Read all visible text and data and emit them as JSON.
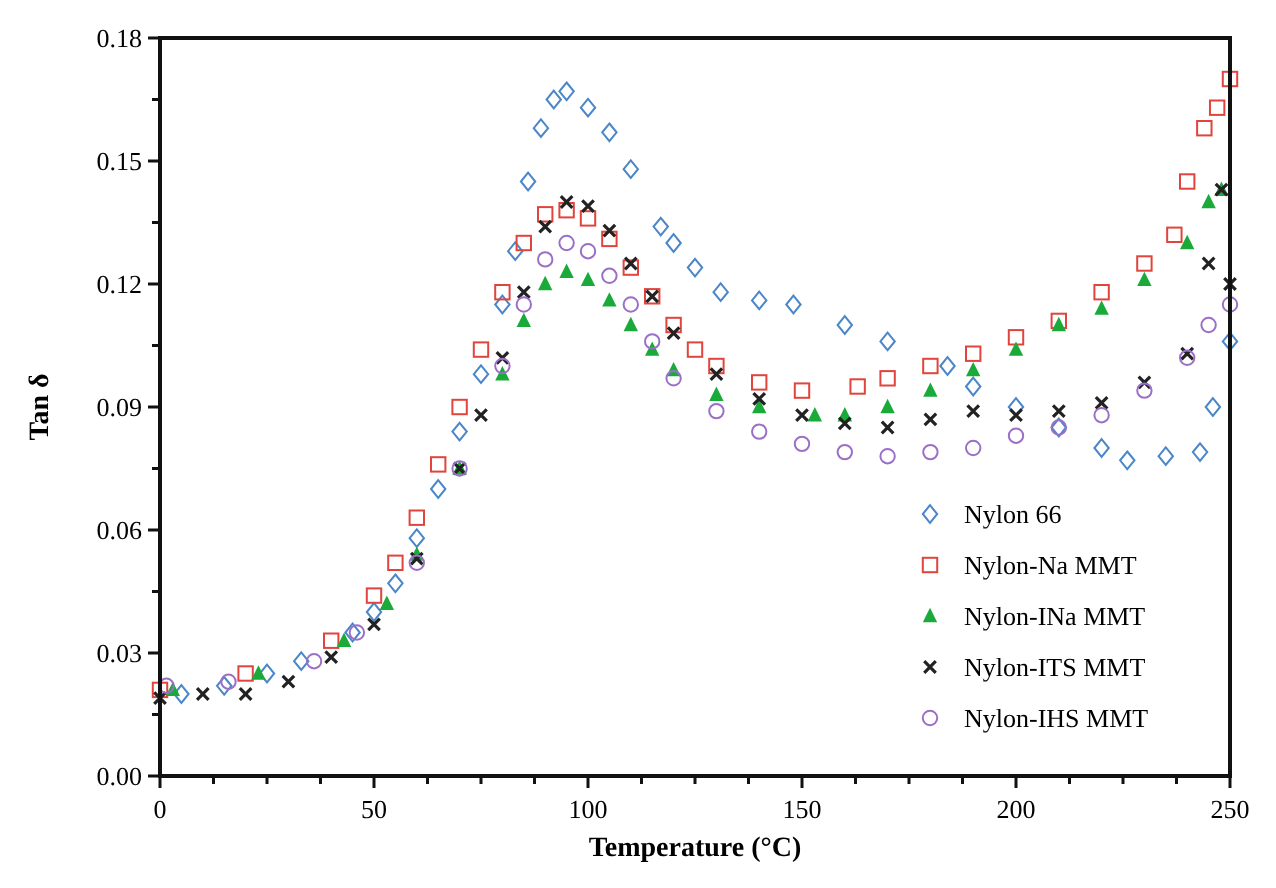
{
  "chart_data": {
    "type": "scatter",
    "xlabel": "Temperature (°C)",
    "ylabel": "Tan δ",
    "xlim": [
      0,
      250
    ],
    "ylim": [
      0,
      0.18
    ],
    "xticks": [
      0,
      {
        "value": 12.5,
        "label": null
      },
      50,
      {
        "value": 25,
        "label": null
      },
      {
        "value": 37.5,
        "label": null
      },
      {
        "value": 62.5,
        "label": null
      },
      {
        "value": 75,
        "label": null
      },
      {
        "value": 87.5,
        "label": null
      },
      100,
      {
        "value": 112.5,
        "label": null
      },
      {
        "value": 125,
        "label": null
      },
      {
        "value": 137.5,
        "label": null
      },
      150,
      {
        "value": 162.5,
        "label": null
      },
      {
        "value": 175,
        "label": null
      },
      {
        "value": 187.5,
        "label": null
      },
      200,
      {
        "value": 212.5,
        "label": null
      },
      {
        "value": 225,
        "label": null
      },
      {
        "value": 237.5,
        "label": null
      },
      250
    ],
    "yticks": [
      {
        "value": 0,
        "label": "0.00"
      },
      {
        "value": 0.015,
        "label": null
      },
      {
        "value": 0.03,
        "label": "0.03"
      },
      {
        "value": 0.045,
        "label": null
      },
      {
        "value": 0.06,
        "label": "0.06"
      },
      {
        "value": 0.075,
        "label": null
      },
      {
        "value": 0.09,
        "label": "0.09"
      },
      {
        "value": 0.105,
        "label": null
      },
      {
        "value": 0.12,
        "label": "0.12"
      },
      {
        "value": 0.135,
        "label": null
      },
      {
        "value": 0.15,
        "label": "0.15"
      },
      {
        "value": 0.165,
        "label": null
      },
      {
        "value": 0.18,
        "label": "0.18"
      }
    ],
    "grid": false,
    "legend": "bottom right",
    "series": [
      {
        "name": "Nylon 66",
        "color": "#4a86c8",
        "marker": "diamond",
        "x": [
          5,
          15,
          25,
          33,
          45,
          50,
          55,
          60,
          65,
          70,
          75,
          80,
          83,
          86,
          89,
          92,
          95,
          100,
          105,
          110,
          117,
          120,
          125,
          131,
          140,
          148,
          160,
          170,
          184,
          190,
          200,
          210,
          220,
          226,
          235,
          243,
          246,
          250
        ],
        "values": [
          0.02,
          0.022,
          0.025,
          0.028,
          0.035,
          0.04,
          0.047,
          0.058,
          0.07,
          0.084,
          0.098,
          0.115,
          0.128,
          0.145,
          0.158,
          0.165,
          0.167,
          0.163,
          0.157,
          0.148,
          0.134,
          0.13,
          0.124,
          0.118,
          0.116,
          0.115,
          0.11,
          0.106,
          0.1,
          0.095,
          0.09,
          0.085,
          0.08,
          0.077,
          0.078,
          0.079,
          0.09,
          0.106
        ]
      },
      {
        "name": "Nylon-Na MMT",
        "color": "#e0443c",
        "marker": "square",
        "x": [
          0,
          20,
          40,
          50,
          55,
          60,
          65,
          70,
          75,
          80,
          85,
          90,
          95,
          100,
          105,
          110,
          115,
          120,
          125,
          130,
          140,
          150,
          163,
          170,
          180,
          190,
          200,
          210,
          220,
          230,
          237,
          240,
          244,
          247,
          250
        ],
        "values": [
          0.021,
          0.025,
          0.033,
          0.044,
          0.052,
          0.063,
          0.076,
          0.09,
          0.104,
          0.118,
          0.13,
          0.137,
          0.138,
          0.136,
          0.131,
          0.124,
          0.117,
          0.11,
          0.104,
          0.1,
          0.096,
          0.094,
          0.095,
          0.097,
          0.1,
          0.103,
          0.107,
          0.111,
          0.118,
          0.125,
          0.132,
          0.145,
          0.158,
          0.163,
          0.17
        ]
      },
      {
        "name": "Nylon-INa MMT",
        "color": "#1aaa3a",
        "marker": "triangle",
        "x": [
          3,
          23,
          43,
          53,
          60,
          70,
          80,
          85,
          90,
          95,
          100,
          105,
          110,
          115,
          120,
          130,
          140,
          153,
          160,
          170,
          180,
          190,
          200,
          210,
          220,
          230,
          240,
          245,
          248
        ],
        "values": [
          0.021,
          0.025,
          0.033,
          0.042,
          0.054,
          0.075,
          0.098,
          0.111,
          0.12,
          0.123,
          0.121,
          0.116,
          0.11,
          0.104,
          0.099,
          0.093,
          0.09,
          0.088,
          0.088,
          0.09,
          0.094,
          0.099,
          0.104,
          0.11,
          0.114,
          0.121,
          0.13,
          0.14,
          0.143
        ]
      },
      {
        "name": "Nylon-ITS MMT",
        "color": "#222222",
        "marker": "cross",
        "x": [
          0,
          10,
          20,
          30,
          40,
          50,
          60,
          70,
          75,
          80,
          85,
          90,
          95,
          100,
          105,
          110,
          115,
          120,
          130,
          140,
          150,
          160,
          170,
          180,
          190,
          200,
          210,
          220,
          230,
          240,
          245,
          248,
          250
        ],
        "values": [
          0.019,
          0.02,
          0.02,
          0.023,
          0.029,
          0.037,
          0.053,
          0.075,
          0.088,
          0.102,
          0.118,
          0.134,
          0.14,
          0.139,
          0.133,
          0.125,
          0.117,
          0.108,
          0.098,
          0.092,
          0.088,
          0.086,
          0.085,
          0.087,
          0.089,
          0.088,
          0.089,
          0.091,
          0.096,
          0.103,
          0.125,
          0.143,
          0.12
        ]
      },
      {
        "name": "Nylon-IHS MMT",
        "color": "#9b6fc8",
        "marker": "circle",
        "x": [
          1.5,
          16,
          36,
          46,
          60,
          70,
          80,
          85,
          90,
          95,
          100,
          105,
          110,
          115,
          120,
          130,
          140,
          150,
          160,
          170,
          180,
          190,
          200,
          210,
          220,
          230,
          240,
          245,
          250
        ],
        "values": [
          0.022,
          0.023,
          0.028,
          0.035,
          0.052,
          0.075,
          0.1,
          0.115,
          0.126,
          0.13,
          0.128,
          0.122,
          0.115,
          0.106,
          0.097,
          0.089,
          0.084,
          0.081,
          0.079,
          0.078,
          0.079,
          0.08,
          0.083,
          0.085,
          0.088,
          0.094,
          0.102,
          0.11,
          0.115
        ]
      }
    ]
  }
}
